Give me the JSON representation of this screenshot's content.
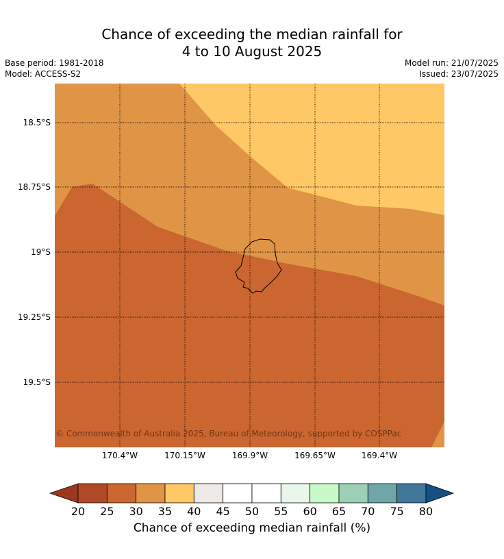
{
  "title": {
    "line1": "Chance of exceeding the median rainfall for",
    "line2": "4 to 10 August 2025"
  },
  "meta": {
    "base_period": "Base period: 1981-2018",
    "model": "Model: ACCESS-S2",
    "model_run": "Model run: 21/07/2025",
    "issued": "Issued: 23/07/2025"
  },
  "map": {
    "copyright": "© Commonwealth of Australia 2025, Bureau of Meteorology, supported by COSPPac",
    "lat_labels": [
      "18.5°S",
      "18.75°S",
      "19°S",
      "19.25°S",
      "19.5°S"
    ],
    "lon_labels": [
      "170.4°W",
      "170.15°W",
      "169.9°W",
      "169.65°W",
      "169.4°W"
    ],
    "gridline_style": "dotted",
    "island": "Niue"
  },
  "legend": {
    "ticks": [
      "20",
      "25",
      "30",
      "35",
      "40",
      "45",
      "50",
      "55",
      "60",
      "65",
      "70",
      "75",
      "80"
    ],
    "label": "Chance of exceeding median rainfall (%)",
    "colors": [
      "#b04a26",
      "#cb6630",
      "#e09446",
      "#fdc865",
      "#ede9e6",
      "#ffffff",
      "#ffffff",
      "#e9f6e9",
      "#c8f9c8",
      "#9ccfb6",
      "#6fa6a8",
      "#41789a"
    ],
    "under_color": "#9c3820",
    "over_color": "#154f86"
  },
  "region_colors": {
    "25-30": "#cb6630",
    "30-35": "#e09446",
    "35-40": "#fdc865"
  }
}
